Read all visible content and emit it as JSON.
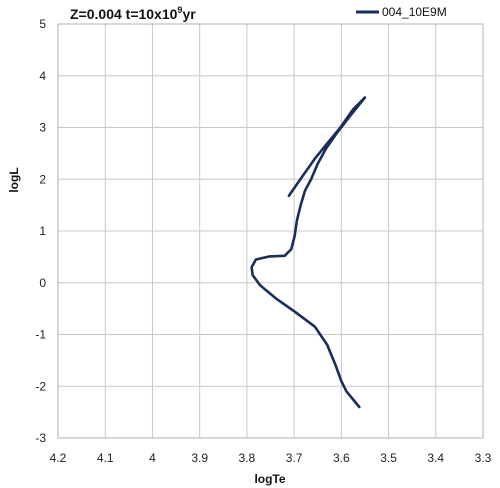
{
  "chart_data": {
    "type": "line",
    "title_prefix": "Z=0.004 t=10x10",
    "title_sup": "9",
    "title_suffix": "yr",
    "xlabel": "logTe",
    "ylabel": "logL",
    "xlim": [
      4.2,
      3.3
    ],
    "x_reversed": true,
    "ylim": [
      -3,
      5
    ],
    "x_ticks": [
      4.2,
      4.1,
      4.0,
      3.9,
      3.8,
      3.7,
      3.6,
      3.5,
      3.4,
      3.3
    ],
    "x_tick_labels": [
      "4.2",
      "4.1",
      "4",
      "3.9",
      "3.8",
      "3.7",
      "3.6",
      "3.5",
      "3.4",
      "3.3"
    ],
    "y_ticks": [
      -3,
      -2,
      -1,
      0,
      1,
      2,
      3,
      4,
      5
    ],
    "y_tick_labels": [
      "-3",
      "-2",
      "-1",
      "0",
      "1",
      "2",
      "3",
      "4",
      "5"
    ],
    "grid": true,
    "legend_position": "top-right",
    "series": [
      {
        "name": "004_10E9M",
        "color": "#1a2e5a",
        "points": [
          [
            3.562,
            -2.4
          ],
          [
            3.589,
            -2.1
          ],
          [
            3.6,
            -1.9
          ],
          [
            3.612,
            -1.6
          ],
          [
            3.63,
            -1.2
          ],
          [
            3.656,
            -0.85
          ],
          [
            3.7,
            -0.55
          ],
          [
            3.739,
            -0.3
          ],
          [
            3.772,
            -0.05
          ],
          [
            3.788,
            0.15
          ],
          [
            3.79,
            0.3
          ],
          [
            3.781,
            0.45
          ],
          [
            3.752,
            0.51
          ],
          [
            3.72,
            0.52
          ],
          [
            3.706,
            0.65
          ],
          [
            3.699,
            0.9
          ],
          [
            3.694,
            1.2
          ],
          [
            3.686,
            1.5
          ],
          [
            3.677,
            1.78
          ],
          [
            3.664,
            2.0
          ],
          [
            3.65,
            2.3
          ],
          [
            3.632,
            2.6
          ],
          [
            3.609,
            2.9
          ],
          [
            3.579,
            3.25
          ],
          [
            3.55,
            3.58
          ],
          [
            3.575,
            3.35
          ],
          [
            3.602,
            3.0
          ],
          [
            3.629,
            2.7
          ],
          [
            3.656,
            2.4
          ],
          [
            3.683,
            2.05
          ],
          [
            3.711,
            1.68
          ]
        ]
      }
    ]
  }
}
